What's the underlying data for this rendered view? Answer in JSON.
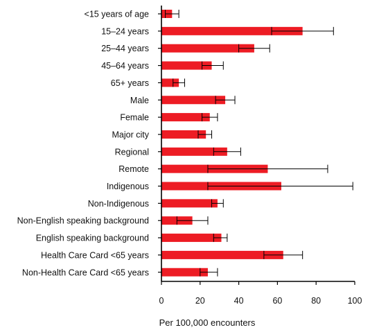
{
  "chart_data": {
    "type": "bar",
    "orientation": "horizontal",
    "categories": [
      "<15 years of age",
      "15–24 years",
      "25–44 years",
      "45–64 years",
      "65+ years",
      "Male",
      "Female",
      "Major city",
      "Regional",
      "Remote",
      "Indigenous",
      "Non-Indigenous",
      "Non-English speaking background",
      "English speaking background",
      "Health Care Card <65 years",
      "Non-Health Care Card <65 years"
    ],
    "values": [
      5.5,
      73,
      48,
      26,
      9,
      33,
      25,
      23,
      34,
      55,
      62,
      29,
      16,
      31,
      63,
      24
    ],
    "error_low": [
      2,
      57,
      40,
      21,
      6,
      28,
      21,
      19,
      27,
      24,
      24,
      26,
      8,
      27,
      53,
      20
    ],
    "error_high": [
      9,
      89,
      56,
      32,
      12,
      38,
      29,
      26,
      41,
      86,
      99,
      32,
      24,
      34,
      73,
      29
    ],
    "xlabel": "Per 100,000 encounters",
    "ylabel": "",
    "xlim": [
      0,
      100
    ],
    "xticks": [
      0,
      20,
      40,
      60,
      80,
      100
    ],
    "grid": false,
    "colors": {
      "bar": "#ed1c24",
      "error": "#000000",
      "axis": "#000000"
    }
  }
}
